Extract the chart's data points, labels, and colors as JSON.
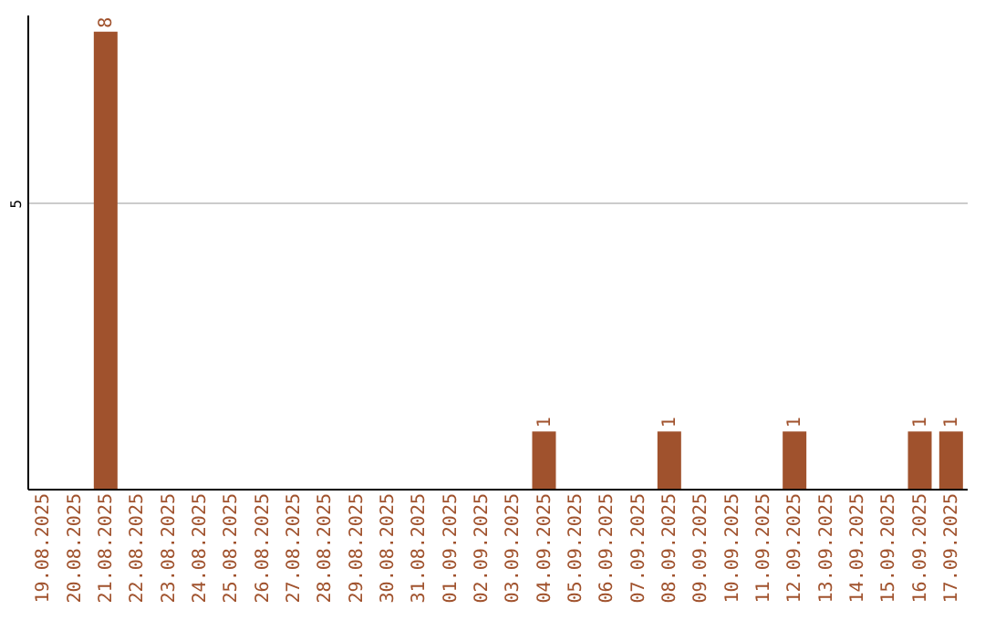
{
  "chart_data": {
    "type": "bar",
    "categories": [
      "19.08.2025",
      "20.08.2025",
      "21.08.2025",
      "22.08.2025",
      "23.08.2025",
      "24.08.2025",
      "25.08.2025",
      "26.08.2025",
      "27.08.2025",
      "28.08.2025",
      "29.08.2025",
      "30.08.2025",
      "31.08.2025",
      "01.09.2025",
      "02.09.2025",
      "03.09.2025",
      "04.09.2025",
      "05.09.2025",
      "06.09.2025",
      "07.09.2025",
      "08.09.2025",
      "09.09.2025",
      "10.09.2025",
      "11.09.2025",
      "12.09.2025",
      "13.09.2025",
      "14.09.2025",
      "15.09.2025",
      "16.09.2025",
      "17.09.2025"
    ],
    "values": [
      0,
      0,
      8,
      0,
      0,
      0,
      0,
      0,
      0,
      0,
      0,
      0,
      0,
      0,
      0,
      0,
      1,
      0,
      0,
      0,
      1,
      0,
      0,
      0,
      1,
      0,
      0,
      0,
      1,
      1
    ],
    "value_labels": [
      null,
      null,
      "8",
      null,
      null,
      null,
      null,
      null,
      null,
      null,
      null,
      null,
      null,
      null,
      null,
      null,
      "1",
      null,
      null,
      null,
      "1",
      null,
      null,
      null,
      "1",
      null,
      null,
      null,
      "1",
      "1"
    ],
    "color": "#a0522d",
    "ylim": [
      0,
      8.3
    ],
    "yticks": [
      5
    ],
    "grid": "y"
  }
}
